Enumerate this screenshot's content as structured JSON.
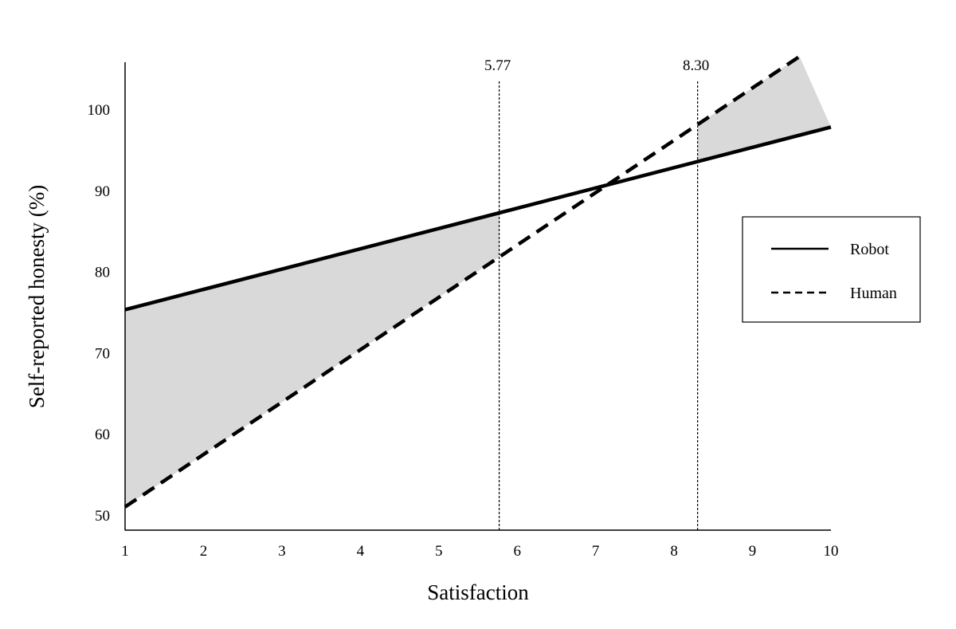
{
  "chart_data": {
    "type": "line",
    "xlabel": "Satisfaction",
    "ylabel": "Self-reported honesty (%)",
    "xlim": [
      1,
      10
    ],
    "ylim": [
      48,
      106
    ],
    "x_ticks": [
      "1",
      "2",
      "3",
      "4",
      "5",
      "6",
      "7",
      "8",
      "9",
      "10"
    ],
    "y_ticks": [
      "50",
      "60",
      "70",
      "80",
      "90",
      "100"
    ],
    "grid": false,
    "legend": "right",
    "series": [
      {
        "name": "Robot",
        "style": "solid",
        "x": [
          1,
          10
        ],
        "y": [
          75.3,
          97.8
        ]
      },
      {
        "name": "Human",
        "style": "dashed",
        "x": [
          1,
          9.6
        ],
        "y": [
          51.0,
          106.5
        ]
      }
    ],
    "annotations": [
      {
        "label": "5.77",
        "x": 5.77
      },
      {
        "label": "8.30",
        "x": 8.3
      }
    ],
    "shaded_regions": [
      {
        "x": [
          1,
          5.77
        ],
        "between": [
          "Robot",
          "Human"
        ]
      },
      {
        "x": [
          8.3,
          10
        ],
        "between": [
          "Robot",
          "Human"
        ]
      }
    ],
    "colors": {
      "line": "#000000",
      "shade": "#d9d9d9"
    }
  }
}
